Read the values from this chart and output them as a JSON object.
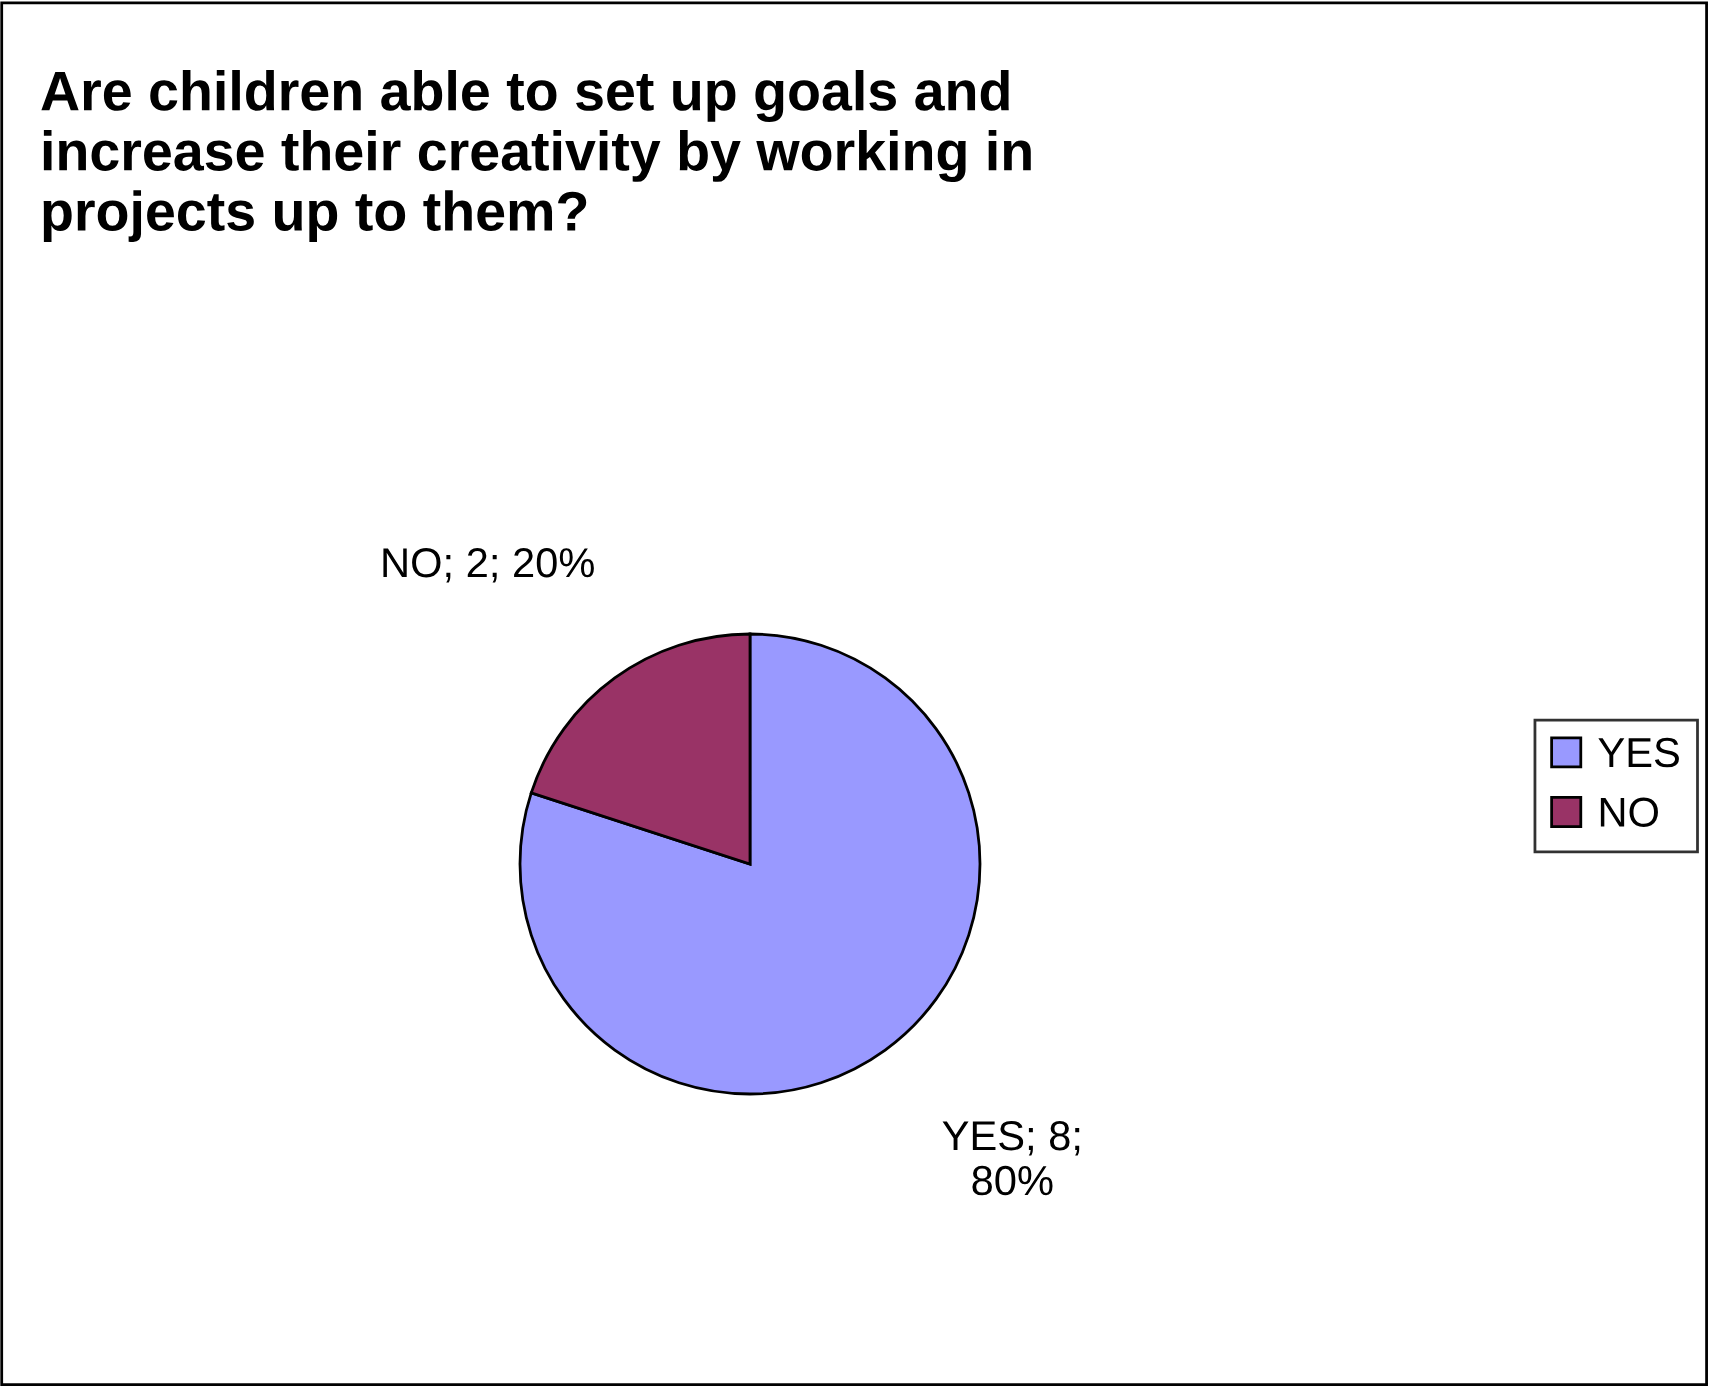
{
  "chart_data": {
    "type": "pie",
    "title": "Are children able to set up goals and\nincrease their creativity by working in\nprojects up to them?",
    "categories": [
      "YES",
      "NO"
    ],
    "values": [
      8,
      2
    ],
    "colors": [
      "#9999ff",
      "#993366"
    ],
    "value_labels": [
      "YES; 8;\n80%",
      "NO; 2; 20%"
    ],
    "legend": "right"
  }
}
